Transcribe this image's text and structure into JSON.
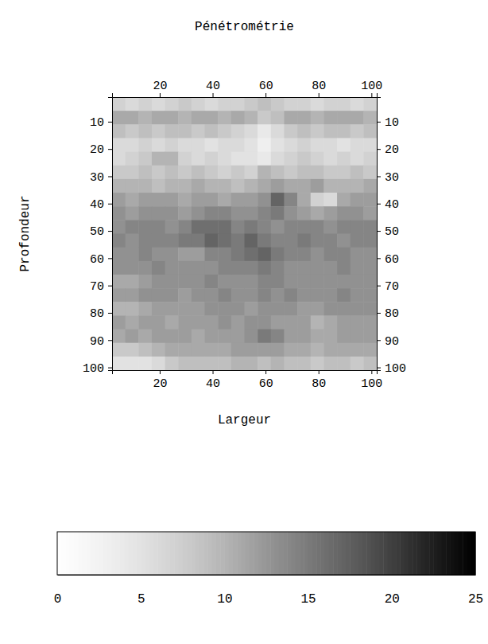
{
  "chart_data": {
    "type": "heatmap",
    "title": "Pénétrométrie",
    "x_label": "Largeur",
    "y_label": "Profondeur",
    "x": [
      4.5,
      9.5,
      14.5,
      19.5,
      24.5,
      29.5,
      34.5,
      39.5,
      44.5,
      49.5,
      54.5,
      59.5,
      64.5,
      69.5,
      74.5,
      79.5,
      84.5,
      89.5,
      94.5,
      99.5
    ],
    "y": [
      3.5,
      8.5,
      13.5,
      18.5,
      23.5,
      28.5,
      33.5,
      38.5,
      43.5,
      48.5,
      53.5,
      58.5,
      63.5,
      68.5,
      73.5,
      78.5,
      83.5,
      88.5,
      93.5,
      98.5
    ],
    "values": [
      [
        7,
        6,
        7,
        6,
        7,
        8,
        7,
        6,
        7,
        7,
        8,
        9,
        8,
        7,
        7,
        6,
        7,
        7,
        6,
        7
      ],
      [
        11,
        11,
        10,
        11,
        11,
        10,
        11,
        11,
        10,
        11,
        10,
        8,
        9,
        11,
        11,
        10,
        11,
        11,
        11,
        10
      ],
      [
        9,
        8,
        9,
        8,
        9,
        9,
        8,
        9,
        8,
        7,
        6,
        4,
        6,
        8,
        9,
        8,
        9,
        9,
        8,
        9
      ],
      [
        6,
        6,
        7,
        6,
        7,
        6,
        6,
        5,
        6,
        6,
        5,
        3,
        5,
        6,
        7,
        6,
        6,
        5,
        6,
        6
      ],
      [
        6,
        7,
        8,
        10,
        10,
        7,
        6,
        7,
        6,
        5,
        5,
        4,
        6,
        7,
        8,
        7,
        6,
        7,
        6,
        7
      ],
      [
        8,
        8,
        9,
        8,
        9,
        8,
        9,
        8,
        7,
        8,
        7,
        10,
        9,
        8,
        9,
        9,
        8,
        8,
        9,
        8
      ],
      [
        10,
        10,
        10,
        9,
        10,
        10,
        11,
        10,
        10,
        9,
        10,
        11,
        12,
        11,
        11,
        12,
        10,
        10,
        10,
        11
      ],
      [
        12,
        11,
        12,
        12,
        12,
        11,
        12,
        12,
        11,
        12,
        12,
        13,
        17,
        14,
        11,
        7,
        6,
        11,
        12,
        12
      ],
      [
        13,
        12,
        13,
        13,
        13,
        12,
        13,
        14,
        14,
        13,
        13,
        14,
        15,
        13,
        12,
        11,
        12,
        13,
        13,
        12
      ],
      [
        13,
        14,
        14,
        14,
        13,
        14,
        16,
        16,
        16,
        14,
        15,
        14,
        13,
        14,
        14,
        14,
        13,
        14,
        14,
        14
      ],
      [
        14,
        13,
        14,
        14,
        14,
        15,
        15,
        17,
        16,
        15,
        17,
        15,
        14,
        14,
        15,
        14,
        14,
        13,
        14,
        14
      ],
      [
        13,
        13,
        14,
        13,
        13,
        12,
        12,
        14,
        14,
        15,
        16,
        17,
        15,
        14,
        14,
        13,
        14,
        14,
        13,
        13
      ],
      [
        13,
        13,
        13,
        14,
        13,
        13,
        13,
        13,
        14,
        14,
        14,
        15,
        14,
        13,
        13,
        13,
        13,
        14,
        13,
        13
      ],
      [
        11,
        11,
        12,
        13,
        13,
        13,
        13,
        14,
        13,
        13,
        13,
        14,
        14,
        13,
        13,
        13,
        13,
        13,
        13,
        13
      ],
      [
        12,
        12,
        13,
        13,
        13,
        12,
        13,
        13,
        14,
        13,
        13,
        14,
        13,
        14,
        13,
        13,
        13,
        14,
        13,
        13
      ],
      [
        10,
        10,
        11,
        12,
        12,
        12,
        12,
        13,
        13,
        13,
        12,
        13,
        13,
        13,
        12,
        12,
        13,
        13,
        13,
        13
      ],
      [
        12,
        11,
        12,
        12,
        11,
        12,
        12,
        12,
        13,
        12,
        13,
        13,
        12,
        12,
        12,
        10,
        11,
        12,
        12,
        12
      ],
      [
        11,
        12,
        11,
        12,
        12,
        12,
        11,
        12,
        12,
        12,
        13,
        15,
        14,
        12,
        12,
        11,
        11,
        12,
        12,
        12
      ],
      [
        8,
        8,
        9,
        10,
        11,
        11,
        11,
        11,
        11,
        12,
        12,
        12,
        12,
        11,
        11,
        10,
        11,
        11,
        11,
        11
      ],
      [
        5,
        5,
        5,
        6,
        8,
        9,
        9,
        9,
        9,
        10,
        10,
        9,
        10,
        9,
        9,
        8,
        9,
        9,
        8,
        9
      ]
    ],
    "xlim": [
      2,
      102
    ],
    "ylim": [
      1,
      101
    ],
    "xticks": [
      20,
      40,
      60,
      80,
      100
    ],
    "yticks": [
      10,
      20,
      30,
      40,
      50,
      60,
      70,
      80,
      90,
      100
    ],
    "colorbar": {
      "range": [
        0,
        25
      ],
      "ticks": [
        0,
        5,
        10,
        15,
        20,
        25
      ]
    }
  }
}
